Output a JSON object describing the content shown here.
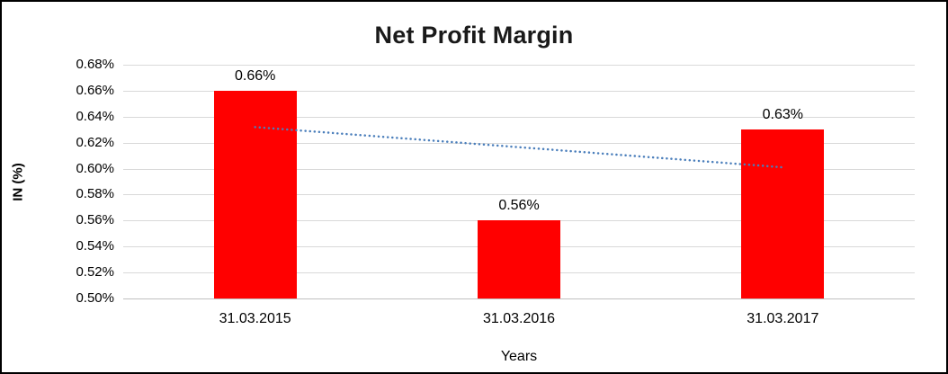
{
  "chart_data": {
    "type": "bar",
    "title": "Net Profit Margin",
    "xlabel": "Years",
    "ylabel": "IN (%)",
    "categories": [
      "31.03.2015",
      "31.03.2016",
      "31.03.2017"
    ],
    "values": [
      0.66,
      0.56,
      0.63
    ],
    "data_labels": [
      "0.66%",
      "0.56%",
      "0.63%"
    ],
    "ylim": [
      0.5,
      0.68
    ],
    "ytick_step": 0.02,
    "ytick_labels": [
      "0.50%",
      "0.52%",
      "0.54%",
      "0.56%",
      "0.58%",
      "0.60%",
      "0.62%",
      "0.64%",
      "0.66%",
      "0.68%"
    ],
    "grid": "horizontal",
    "legend": "none",
    "bar_color": "#ff0000",
    "trendline": {
      "type": "linear",
      "style": "dotted",
      "color": "#4a7ebb",
      "start_value": 0.632,
      "end_value": 0.601
    }
  }
}
